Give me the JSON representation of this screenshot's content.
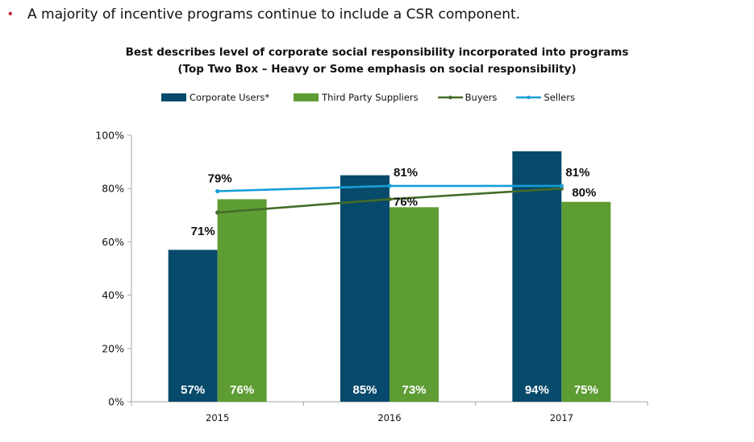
{
  "bullet": {
    "text": "A majority of incentive programs continue to include a CSR component."
  },
  "chart_data": {
    "type": "bar",
    "title": "Best describes level of corporate social responsibility incorporated into programs",
    "subtitle": "(Top  Two Box – Heavy or Some emphasis on social responsibility)",
    "categories": [
      "2015",
      "2016",
      "2017"
    ],
    "ylim": [
      0,
      100
    ],
    "yticks": [
      0,
      20,
      40,
      60,
      80,
      100
    ],
    "ytick_labels": [
      "0%",
      "20%",
      "40%",
      "60%",
      "80%",
      "100%"
    ],
    "legend_position": "top",
    "series": [
      {
        "name": "Corporate Users*",
        "type": "bar",
        "color": "#084a6b",
        "values": [
          57,
          85,
          94
        ],
        "labels": [
          "57%",
          "85%",
          "94%"
        ]
      },
      {
        "name": "Third Party Suppliers",
        "type": "bar",
        "color": "#5e9c34",
        "values": [
          76,
          73,
          75
        ],
        "labels": [
          "76%",
          "73%",
          "75%"
        ]
      },
      {
        "name": "Buyers",
        "type": "line",
        "color": "#456c28",
        "values": [
          71,
          76,
          80
        ],
        "labels": [
          "71%",
          "76%",
          "80%"
        ]
      },
      {
        "name": "Sellers",
        "type": "line",
        "color": "#159ed6",
        "values": [
          79,
          81,
          81
        ],
        "labels": [
          "79%",
          "81%",
          "81%"
        ]
      }
    ]
  }
}
